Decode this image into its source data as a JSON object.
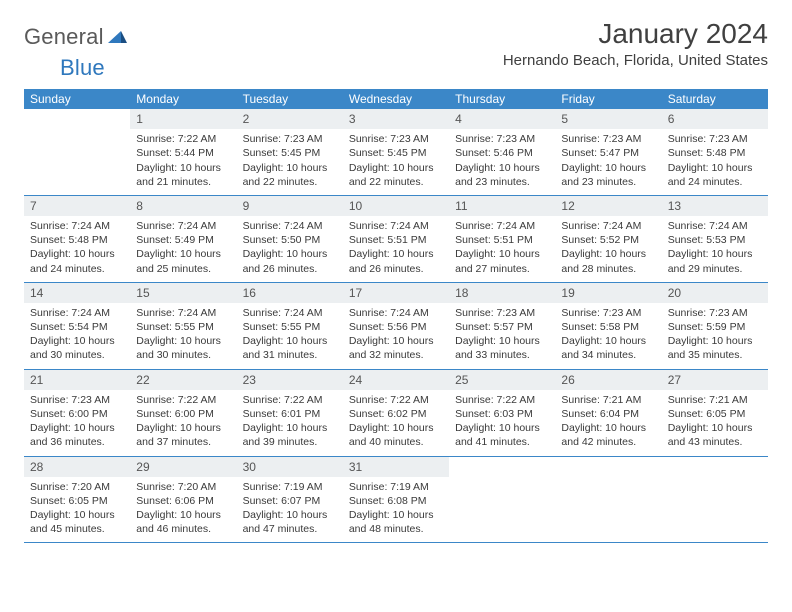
{
  "brand": {
    "word1": "General",
    "word2": "Blue",
    "text_color": "#5a5a5a",
    "accent_color": "#2f78bd"
  },
  "header": {
    "title": "January 2024",
    "location": "Hernando Beach, Florida, United States"
  },
  "colors": {
    "header_bar": "#3b87c8",
    "row_divider": "#3b87c8",
    "daynum_bg": "#eceff1",
    "text": "#3a3a3a"
  },
  "weekdays": [
    "Sunday",
    "Monday",
    "Tuesday",
    "Wednesday",
    "Thursday",
    "Friday",
    "Saturday"
  ],
  "weeks": [
    [
      null,
      {
        "n": "1",
        "sr": "Sunrise: 7:22 AM",
        "ss": "Sunset: 5:44 PM",
        "d1": "Daylight: 10 hours",
        "d2": "and 21 minutes."
      },
      {
        "n": "2",
        "sr": "Sunrise: 7:23 AM",
        "ss": "Sunset: 5:45 PM",
        "d1": "Daylight: 10 hours",
        "d2": "and 22 minutes."
      },
      {
        "n": "3",
        "sr": "Sunrise: 7:23 AM",
        "ss": "Sunset: 5:45 PM",
        "d1": "Daylight: 10 hours",
        "d2": "and 22 minutes."
      },
      {
        "n": "4",
        "sr": "Sunrise: 7:23 AM",
        "ss": "Sunset: 5:46 PM",
        "d1": "Daylight: 10 hours",
        "d2": "and 23 minutes."
      },
      {
        "n": "5",
        "sr": "Sunrise: 7:23 AM",
        "ss": "Sunset: 5:47 PM",
        "d1": "Daylight: 10 hours",
        "d2": "and 23 minutes."
      },
      {
        "n": "6",
        "sr": "Sunrise: 7:23 AM",
        "ss": "Sunset: 5:48 PM",
        "d1": "Daylight: 10 hours",
        "d2": "and 24 minutes."
      }
    ],
    [
      {
        "n": "7",
        "sr": "Sunrise: 7:24 AM",
        "ss": "Sunset: 5:48 PM",
        "d1": "Daylight: 10 hours",
        "d2": "and 24 minutes."
      },
      {
        "n": "8",
        "sr": "Sunrise: 7:24 AM",
        "ss": "Sunset: 5:49 PM",
        "d1": "Daylight: 10 hours",
        "d2": "and 25 minutes."
      },
      {
        "n": "9",
        "sr": "Sunrise: 7:24 AM",
        "ss": "Sunset: 5:50 PM",
        "d1": "Daylight: 10 hours",
        "d2": "and 26 minutes."
      },
      {
        "n": "10",
        "sr": "Sunrise: 7:24 AM",
        "ss": "Sunset: 5:51 PM",
        "d1": "Daylight: 10 hours",
        "d2": "and 26 minutes."
      },
      {
        "n": "11",
        "sr": "Sunrise: 7:24 AM",
        "ss": "Sunset: 5:51 PM",
        "d1": "Daylight: 10 hours",
        "d2": "and 27 minutes."
      },
      {
        "n": "12",
        "sr": "Sunrise: 7:24 AM",
        "ss": "Sunset: 5:52 PM",
        "d1": "Daylight: 10 hours",
        "d2": "and 28 minutes."
      },
      {
        "n": "13",
        "sr": "Sunrise: 7:24 AM",
        "ss": "Sunset: 5:53 PM",
        "d1": "Daylight: 10 hours",
        "d2": "and 29 minutes."
      }
    ],
    [
      {
        "n": "14",
        "sr": "Sunrise: 7:24 AM",
        "ss": "Sunset: 5:54 PM",
        "d1": "Daylight: 10 hours",
        "d2": "and 30 minutes."
      },
      {
        "n": "15",
        "sr": "Sunrise: 7:24 AM",
        "ss": "Sunset: 5:55 PM",
        "d1": "Daylight: 10 hours",
        "d2": "and 30 minutes."
      },
      {
        "n": "16",
        "sr": "Sunrise: 7:24 AM",
        "ss": "Sunset: 5:55 PM",
        "d1": "Daylight: 10 hours",
        "d2": "and 31 minutes."
      },
      {
        "n": "17",
        "sr": "Sunrise: 7:24 AM",
        "ss": "Sunset: 5:56 PM",
        "d1": "Daylight: 10 hours",
        "d2": "and 32 minutes."
      },
      {
        "n": "18",
        "sr": "Sunrise: 7:23 AM",
        "ss": "Sunset: 5:57 PM",
        "d1": "Daylight: 10 hours",
        "d2": "and 33 minutes."
      },
      {
        "n": "19",
        "sr": "Sunrise: 7:23 AM",
        "ss": "Sunset: 5:58 PM",
        "d1": "Daylight: 10 hours",
        "d2": "and 34 minutes."
      },
      {
        "n": "20",
        "sr": "Sunrise: 7:23 AM",
        "ss": "Sunset: 5:59 PM",
        "d1": "Daylight: 10 hours",
        "d2": "and 35 minutes."
      }
    ],
    [
      {
        "n": "21",
        "sr": "Sunrise: 7:23 AM",
        "ss": "Sunset: 6:00 PM",
        "d1": "Daylight: 10 hours",
        "d2": "and 36 minutes."
      },
      {
        "n": "22",
        "sr": "Sunrise: 7:22 AM",
        "ss": "Sunset: 6:00 PM",
        "d1": "Daylight: 10 hours",
        "d2": "and 37 minutes."
      },
      {
        "n": "23",
        "sr": "Sunrise: 7:22 AM",
        "ss": "Sunset: 6:01 PM",
        "d1": "Daylight: 10 hours",
        "d2": "and 39 minutes."
      },
      {
        "n": "24",
        "sr": "Sunrise: 7:22 AM",
        "ss": "Sunset: 6:02 PM",
        "d1": "Daylight: 10 hours",
        "d2": "and 40 minutes."
      },
      {
        "n": "25",
        "sr": "Sunrise: 7:22 AM",
        "ss": "Sunset: 6:03 PM",
        "d1": "Daylight: 10 hours",
        "d2": "and 41 minutes."
      },
      {
        "n": "26",
        "sr": "Sunrise: 7:21 AM",
        "ss": "Sunset: 6:04 PM",
        "d1": "Daylight: 10 hours",
        "d2": "and 42 minutes."
      },
      {
        "n": "27",
        "sr": "Sunrise: 7:21 AM",
        "ss": "Sunset: 6:05 PM",
        "d1": "Daylight: 10 hours",
        "d2": "and 43 minutes."
      }
    ],
    [
      {
        "n": "28",
        "sr": "Sunrise: 7:20 AM",
        "ss": "Sunset: 6:05 PM",
        "d1": "Daylight: 10 hours",
        "d2": "and 45 minutes."
      },
      {
        "n": "29",
        "sr": "Sunrise: 7:20 AM",
        "ss": "Sunset: 6:06 PM",
        "d1": "Daylight: 10 hours",
        "d2": "and 46 minutes."
      },
      {
        "n": "30",
        "sr": "Sunrise: 7:19 AM",
        "ss": "Sunset: 6:07 PM",
        "d1": "Daylight: 10 hours",
        "d2": "and 47 minutes."
      },
      {
        "n": "31",
        "sr": "Sunrise: 7:19 AM",
        "ss": "Sunset: 6:08 PM",
        "d1": "Daylight: 10 hours",
        "d2": "and 48 minutes."
      },
      null,
      null,
      null
    ]
  ]
}
